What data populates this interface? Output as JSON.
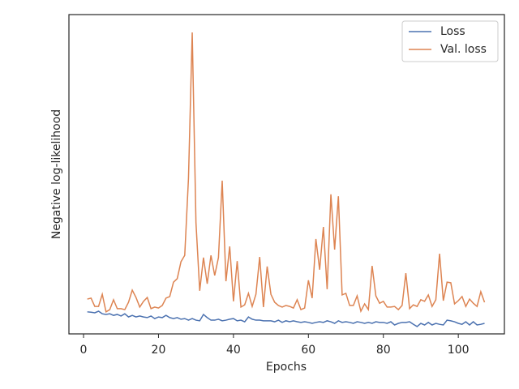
{
  "chart_data": {
    "type": "line",
    "x_label": "Epochs",
    "y_label": "Negative log-likelihood",
    "x": [
      1,
      2,
      3,
      4,
      5,
      6,
      7,
      8,
      9,
      10,
      11,
      12,
      13,
      14,
      15,
      16,
      17,
      18,
      19,
      20,
      21,
      22,
      23,
      24,
      25,
      26,
      27,
      28,
      29,
      30,
      31,
      32,
      33,
      34,
      35,
      36,
      37,
      38,
      39,
      40,
      41,
      42,
      43,
      44,
      45,
      46,
      47,
      48,
      49,
      50,
      51,
      52,
      53,
      54,
      55,
      56,
      57,
      58,
      59,
      60,
      61,
      62,
      63,
      64,
      65,
      66,
      67,
      68,
      69,
      70,
      71,
      72,
      73,
      74,
      75,
      76,
      77,
      78,
      79,
      80,
      81,
      82,
      83,
      84,
      85,
      86,
      87,
      88,
      89,
      90,
      91,
      92,
      93,
      94,
      95,
      96,
      97,
      98,
      99,
      100,
      101,
      102,
      103,
      104,
      105,
      106,
      107
    ],
    "series": [
      {
        "name": "Loss",
        "color": "#4c72b0",
        "values": [
          0.69,
          0.68,
          0.66,
          0.71,
          0.63,
          0.61,
          0.63,
          0.58,
          0.61,
          0.56,
          0.63,
          0.53,
          0.58,
          0.53,
          0.56,
          0.53,
          0.51,
          0.56,
          0.48,
          0.53,
          0.51,
          0.58,
          0.51,
          0.48,
          0.51,
          0.46,
          0.48,
          0.43,
          0.48,
          0.43,
          0.41,
          0.61,
          0.51,
          0.43,
          0.43,
          0.46,
          0.41,
          0.43,
          0.46,
          0.48,
          0.41,
          0.43,
          0.38,
          0.53,
          0.46,
          0.43,
          0.43,
          0.41,
          0.41,
          0.41,
          0.38,
          0.43,
          0.36,
          0.41,
          0.38,
          0.41,
          0.38,
          0.36,
          0.38,
          0.36,
          0.33,
          0.36,
          0.38,
          0.36,
          0.41,
          0.38,
          0.33,
          0.41,
          0.36,
          0.38,
          0.36,
          0.33,
          0.38,
          0.36,
          0.33,
          0.36,
          0.33,
          0.38,
          0.36,
          0.36,
          0.33,
          0.38,
          0.28,
          0.33,
          0.36,
          0.36,
          0.38,
          0.3,
          0.23,
          0.33,
          0.28,
          0.36,
          0.28,
          0.33,
          0.3,
          0.28,
          0.43,
          0.41,
          0.38,
          0.33,
          0.3,
          0.38,
          0.28,
          0.38,
          0.28,
          0.3,
          0.33
        ]
      },
      {
        "name": "Val. loss",
        "color": "#dd8452",
        "values": [
          1.09,
          1.12,
          0.86,
          0.86,
          1.24,
          0.69,
          0.76,
          1.07,
          0.79,
          0.79,
          0.76,
          0.99,
          1.37,
          1.14,
          0.84,
          1.02,
          1.14,
          0.79,
          0.84,
          0.81,
          0.89,
          1.12,
          1.17,
          1.62,
          1.73,
          2.26,
          2.46,
          4.87,
          9.44,
          3.48,
          1.35,
          2.39,
          1.57,
          2.46,
          1.83,
          2.39,
          4.8,
          1.65,
          2.74,
          1.02,
          2.28,
          0.84,
          0.91,
          1.27,
          0.86,
          1.24,
          2.41,
          0.84,
          2.11,
          1.24,
          0.99,
          0.89,
          0.84,
          0.89,
          0.86,
          0.81,
          1.07,
          0.76,
          0.81,
          1.68,
          1.12,
          2.97,
          2.01,
          3.35,
          1.4,
          4.37,
          2.64,
          4.31,
          1.22,
          1.27,
          0.89,
          0.89,
          1.19,
          0.71,
          0.94,
          0.76,
          2.13,
          1.19,
          0.96,
          1.02,
          0.84,
          0.84,
          0.86,
          0.76,
          0.89,
          1.9,
          0.79,
          0.91,
          0.86,
          1.07,
          1.02,
          1.22,
          0.86,
          1.07,
          2.51,
          1.04,
          1.62,
          1.6,
          0.94,
          1.04,
          1.17,
          0.86,
          1.09,
          0.96,
          0.86,
          1.32,
          0.99
        ]
      }
    ],
    "xlim": [
      -3.9,
      112.3
    ],
    "ylim": [
      0,
      10
    ],
    "xticks": [
      0,
      20,
      40,
      60,
      80,
      100
    ],
    "legend": "upper right",
    "grid": false
  }
}
